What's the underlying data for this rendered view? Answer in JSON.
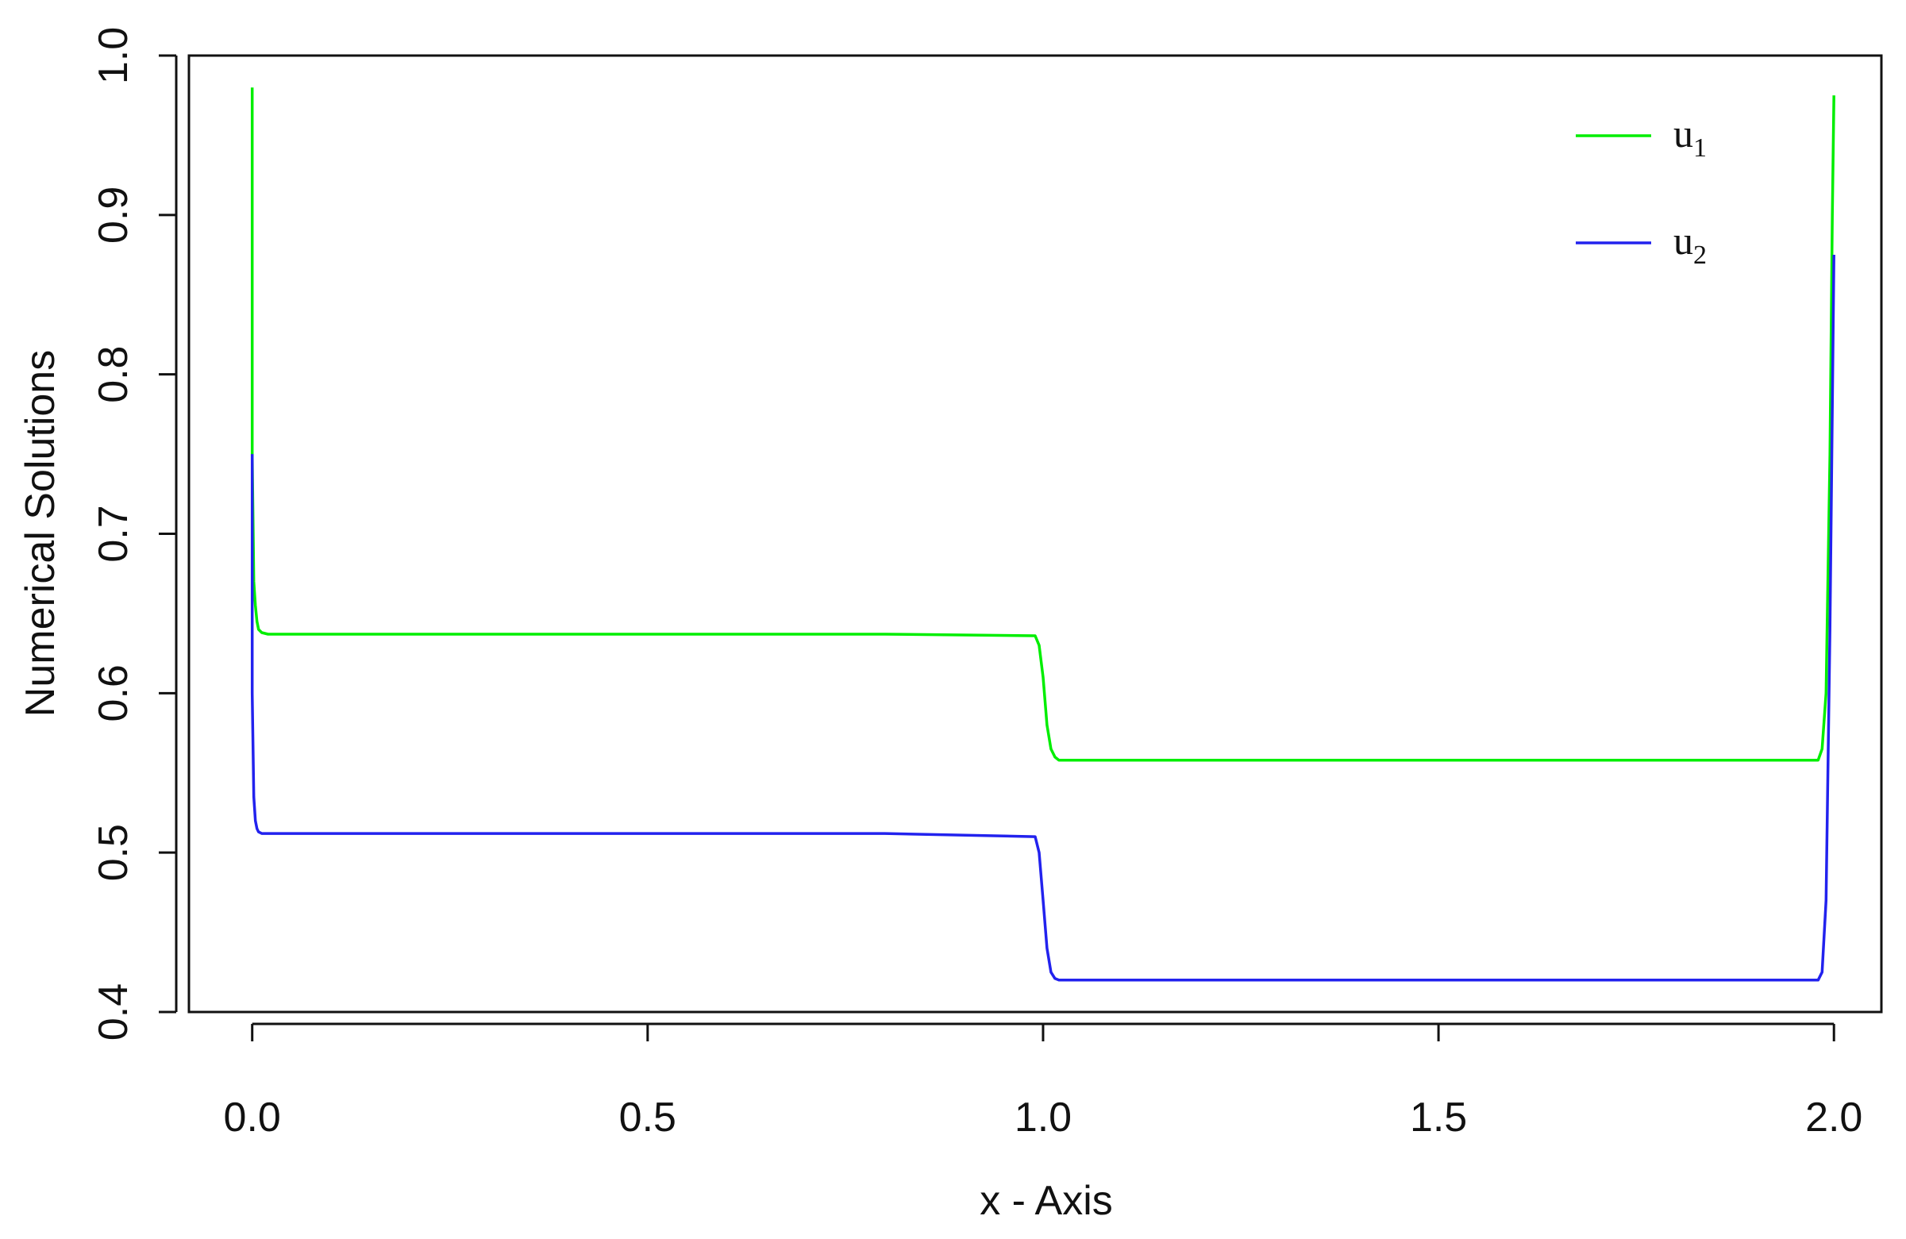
{
  "chart_data": {
    "type": "line",
    "title": "",
    "xlabel": "x - Axis",
    "ylabel": "Numerical Solutions",
    "xlim": [
      -0.08,
      2.06
    ],
    "ylim": [
      0.4,
      1.0
    ],
    "x_ticks": [
      0.0,
      0.5,
      1.0,
      1.5,
      2.0
    ],
    "x_tick_labels": [
      "0.0",
      "0.5",
      "1.0",
      "1.5",
      "2.0"
    ],
    "y_ticks": [
      0.4,
      0.5,
      0.6,
      0.7,
      0.8,
      0.9,
      1.0
    ],
    "y_tick_labels": [
      "0.4",
      "0.5",
      "0.6",
      "0.7",
      "0.8",
      "0.9",
      "1.0"
    ],
    "grid": false,
    "legend_position": "top-right",
    "series": [
      {
        "name": "u",
        "subscript": "1",
        "color": "#00ee00",
        "x": [
          0.0,
          0.0,
          0.002,
          0.004,
          0.006,
          0.008,
          0.012,
          0.02,
          0.2,
          0.5,
          0.8,
          0.99,
          0.995,
          1.0,
          1.005,
          1.01,
          1.015,
          1.02,
          1.03,
          1.2,
          1.5,
          1.8,
          1.98,
          1.985,
          1.99,
          1.995,
          1.998,
          2.0
        ],
        "y": [
          0.98,
          0.75,
          0.67,
          0.655,
          0.645,
          0.64,
          0.638,
          0.637,
          0.637,
          0.637,
          0.637,
          0.636,
          0.63,
          0.61,
          0.58,
          0.565,
          0.56,
          0.558,
          0.558,
          0.558,
          0.558,
          0.558,
          0.558,
          0.565,
          0.6,
          0.75,
          0.9,
          0.975
        ]
      },
      {
        "name": "u",
        "subscript": "2",
        "color": "#2222ee",
        "x": [
          0.0,
          0.0,
          0.002,
          0.004,
          0.006,
          0.008,
          0.012,
          0.02,
          0.2,
          0.5,
          0.8,
          0.99,
          0.995,
          1.0,
          1.005,
          1.01,
          1.015,
          1.02,
          1.03,
          1.2,
          1.5,
          1.8,
          1.98,
          1.985,
          1.99,
          1.995,
          1.998,
          2.0
        ],
        "y": [
          0.75,
          0.6,
          0.535,
          0.52,
          0.515,
          0.513,
          0.512,
          0.512,
          0.512,
          0.512,
          0.512,
          0.51,
          0.5,
          0.47,
          0.44,
          0.425,
          0.421,
          0.42,
          0.42,
          0.42,
          0.42,
          0.42,
          0.42,
          0.425,
          0.47,
          0.64,
          0.78,
          0.875
        ]
      }
    ]
  }
}
